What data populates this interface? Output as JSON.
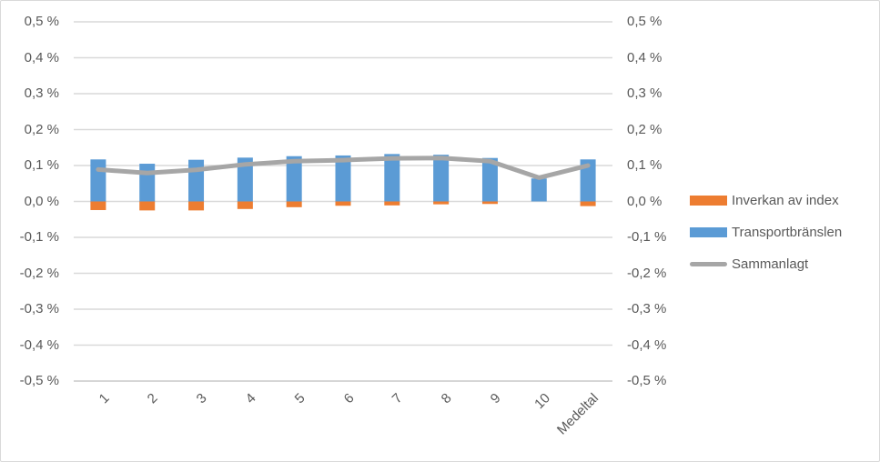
{
  "chart_data": {
    "type": "bar",
    "title": "",
    "categories": [
      "1",
      "2",
      "3",
      "4",
      "5",
      "6",
      "7",
      "8",
      "9",
      "10",
      "Medeltal"
    ],
    "series": [
      {
        "name": "Inverkan av index",
        "kind": "bar",
        "color": "#ED7D31",
        "values": [
          -0.024,
          -0.025,
          -0.025,
          -0.021,
          -0.016,
          -0.012,
          -0.011,
          -0.008,
          -0.007,
          0,
          -0.013
        ]
      },
      {
        "name": "Transportbränslen",
        "kind": "bar",
        "color": "#5B9BD5",
        "values": [
          0.117,
          0.105,
          0.116,
          0.122,
          0.126,
          0.128,
          0.132,
          0.13,
          0.121,
          0.064,
          0.117
        ]
      },
      {
        "name": "Sammanlagt",
        "kind": "line",
        "color": "#A6A6A6",
        "values": [
          0.089,
          0.079,
          0.088,
          0.103,
          0.112,
          0.115,
          0.12,
          0.121,
          0.112,
          0.066,
          0.1
        ]
      }
    ],
    "ylim": [
      -0.5,
      0.5
    ],
    "ytick_step": 0.1,
    "ytick_labels": [
      "0,5 %",
      "0,4 %",
      "0,3 %",
      "0,2 %",
      "0,1 %",
      "0,0 %",
      "-0,1 %",
      "-0,2 %",
      "-0,3 %",
      "-0,4 %",
      "-0,5 %"
    ],
    "grid": true,
    "legend_position": "right",
    "dual_axis": true
  },
  "colors": {
    "background": "#FFFFFF",
    "border": "#D9D9D9",
    "gridline": "#D9D9D9",
    "axis_line": "#C9C9C9",
    "axis_text": "#595959"
  }
}
